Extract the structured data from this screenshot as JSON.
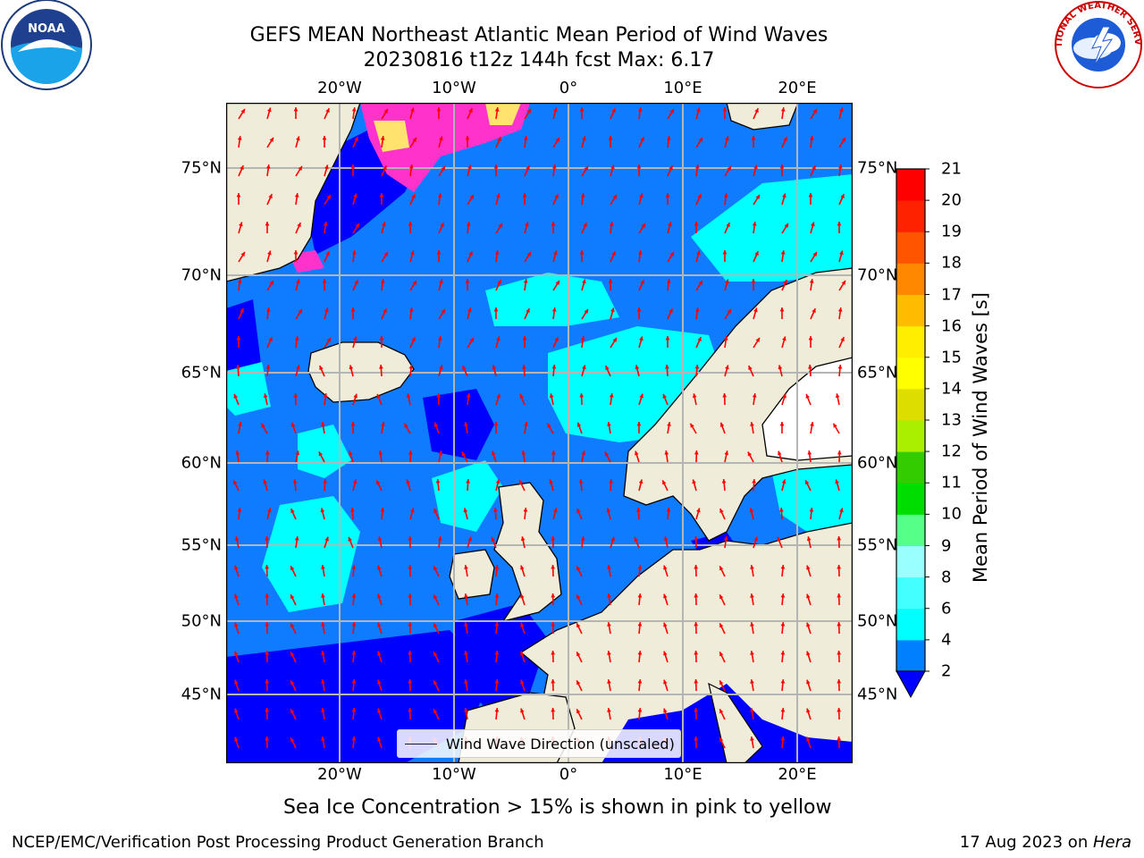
{
  "header": {
    "title_line1": "GEFS MEAN Northeast Atlantic Mean Period of Wind Waves",
    "title_line2": "20230816 t12z 144h fcst   Max: 6.17"
  },
  "logos": {
    "left": {
      "icon": "noaa-logo-icon",
      "text": "NOAA"
    },
    "right": {
      "icon": "nws-logo-icon",
      "text": "NATIONAL WEATHER SERVICE"
    }
  },
  "map": {
    "lon_ticks_top": [
      "20°W",
      "10°W",
      "0°",
      "10°E",
      "20°E"
    ],
    "lon_ticks_bottom": [
      "20°W",
      "10°W",
      "0°",
      "10°E",
      "20°E"
    ],
    "lat_ticks_left": [
      "75°N",
      "70°N",
      "65°N",
      "60°N",
      "55°N",
      "50°N",
      "45°N"
    ],
    "lat_ticks_right": [
      "75°N",
      "70°N",
      "65°N",
      "60°N",
      "55°N",
      "50°N",
      "45°N"
    ],
    "legend_label": "Wind Wave Direction (unscaled)",
    "colors": {
      "land": "#efecd9",
      "ocean_2_4": "#0f7cff",
      "ocean_low": "#0000ff",
      "ocean_4_6": "#00ffff",
      "ice": "#ff33cc",
      "ice_high": "#ffe36e",
      "arrows": "#ff0000"
    }
  },
  "colorbar": {
    "label": "Mean Period of Wind Waves [s]",
    "ticks": [
      "2",
      "4",
      "6",
      "8",
      "9",
      "10",
      "11",
      "12",
      "13",
      "14",
      "15",
      "16",
      "17",
      "18",
      "19",
      "20",
      "21"
    ],
    "colors": [
      "#0080ff",
      "#00ffff",
      "#44ffff",
      "#99ffff",
      "#55ff88",
      "#00dd00",
      "#33cc00",
      "#aaee00",
      "#dddd00",
      "#ffff00",
      "#ffee00",
      "#ffbb00",
      "#ff8800",
      "#ff5500",
      "#ff2200",
      "#ff0000"
    ],
    "extend_color": "#0000ff"
  },
  "notes": {
    "sea_ice": "Sea Ice Concentration > 15% is shown in pink to yellow"
  },
  "footer": {
    "left": "NCEP/EMC/Verification Post Processing Product Generation Branch",
    "right_date": "17 Aug 2023 on ",
    "right_host": "Hera"
  }
}
